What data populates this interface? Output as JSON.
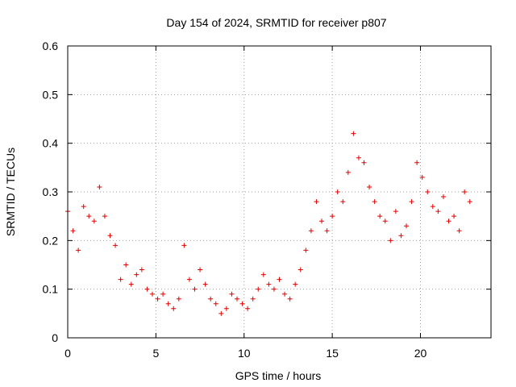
{
  "chart_data": {
    "type": "scatter",
    "title": "Day 154 of 2024, SRMTID for receiver p807",
    "xlabel": "GPS time / hours",
    "ylabel": "SRMTID / TECUs",
    "xlim": [
      0,
      24
    ],
    "ylim": [
      0,
      0.6
    ],
    "xticks": [
      0,
      5,
      10,
      15,
      20
    ],
    "yticks": [
      0,
      0.1,
      0.2,
      0.3,
      0.4,
      0.5,
      0.6
    ],
    "xtick_labels": [
      "0",
      "5",
      "10",
      "15",
      "20"
    ],
    "ytick_labels": [
      "0",
      "0.1",
      "0.2",
      "0.3",
      "0.4",
      "0.5",
      "0.6"
    ],
    "grid": true,
    "marker": "+",
    "color": "#e00000",
    "series": [
      {
        "name": "SRMTID",
        "x": [
          0.0,
          0.3,
          0.6,
          0.9,
          1.2,
          1.5,
          1.8,
          2.1,
          2.4,
          2.7,
          3.0,
          3.3,
          3.6,
          3.9,
          4.2,
          4.5,
          4.8,
          5.1,
          5.4,
          5.7,
          6.0,
          6.3,
          6.6,
          6.9,
          7.2,
          7.5,
          7.8,
          8.1,
          8.4,
          8.7,
          9.0,
          9.3,
          9.6,
          9.9,
          10.2,
          10.5,
          10.8,
          11.1,
          11.4,
          11.7,
          12.0,
          12.3,
          12.6,
          12.9,
          13.2,
          13.5,
          13.8,
          14.1,
          14.4,
          14.7,
          15.0,
          15.3,
          15.6,
          15.9,
          16.2,
          16.5,
          16.8,
          17.1,
          17.4,
          17.7,
          18.0,
          18.3,
          18.6,
          18.9,
          19.2,
          19.5,
          19.8,
          20.1,
          20.4,
          20.7,
          21.0,
          21.3,
          21.6,
          21.9,
          22.2,
          22.5,
          22.8
        ],
        "y": [
          0.26,
          0.22,
          0.18,
          0.27,
          0.25,
          0.24,
          0.31,
          0.25,
          0.21,
          0.19,
          0.12,
          0.15,
          0.11,
          0.13,
          0.14,
          0.1,
          0.09,
          0.08,
          0.09,
          0.07,
          0.06,
          0.08,
          0.19,
          0.12,
          0.1,
          0.14,
          0.11,
          0.08,
          0.07,
          0.05,
          0.06,
          0.09,
          0.08,
          0.07,
          0.06,
          0.08,
          0.1,
          0.13,
          0.11,
          0.1,
          0.12,
          0.09,
          0.08,
          0.11,
          0.14,
          0.18,
          0.22,
          0.28,
          0.24,
          0.22,
          0.25,
          0.3,
          0.28,
          0.34,
          0.42,
          0.37,
          0.36,
          0.31,
          0.28,
          0.25,
          0.24,
          0.2,
          0.26,
          0.21,
          0.23,
          0.28,
          0.36,
          0.33,
          0.3,
          0.27,
          0.26,
          0.29,
          0.24,
          0.25,
          0.22,
          0.3,
          0.28
        ]
      }
    ]
  }
}
